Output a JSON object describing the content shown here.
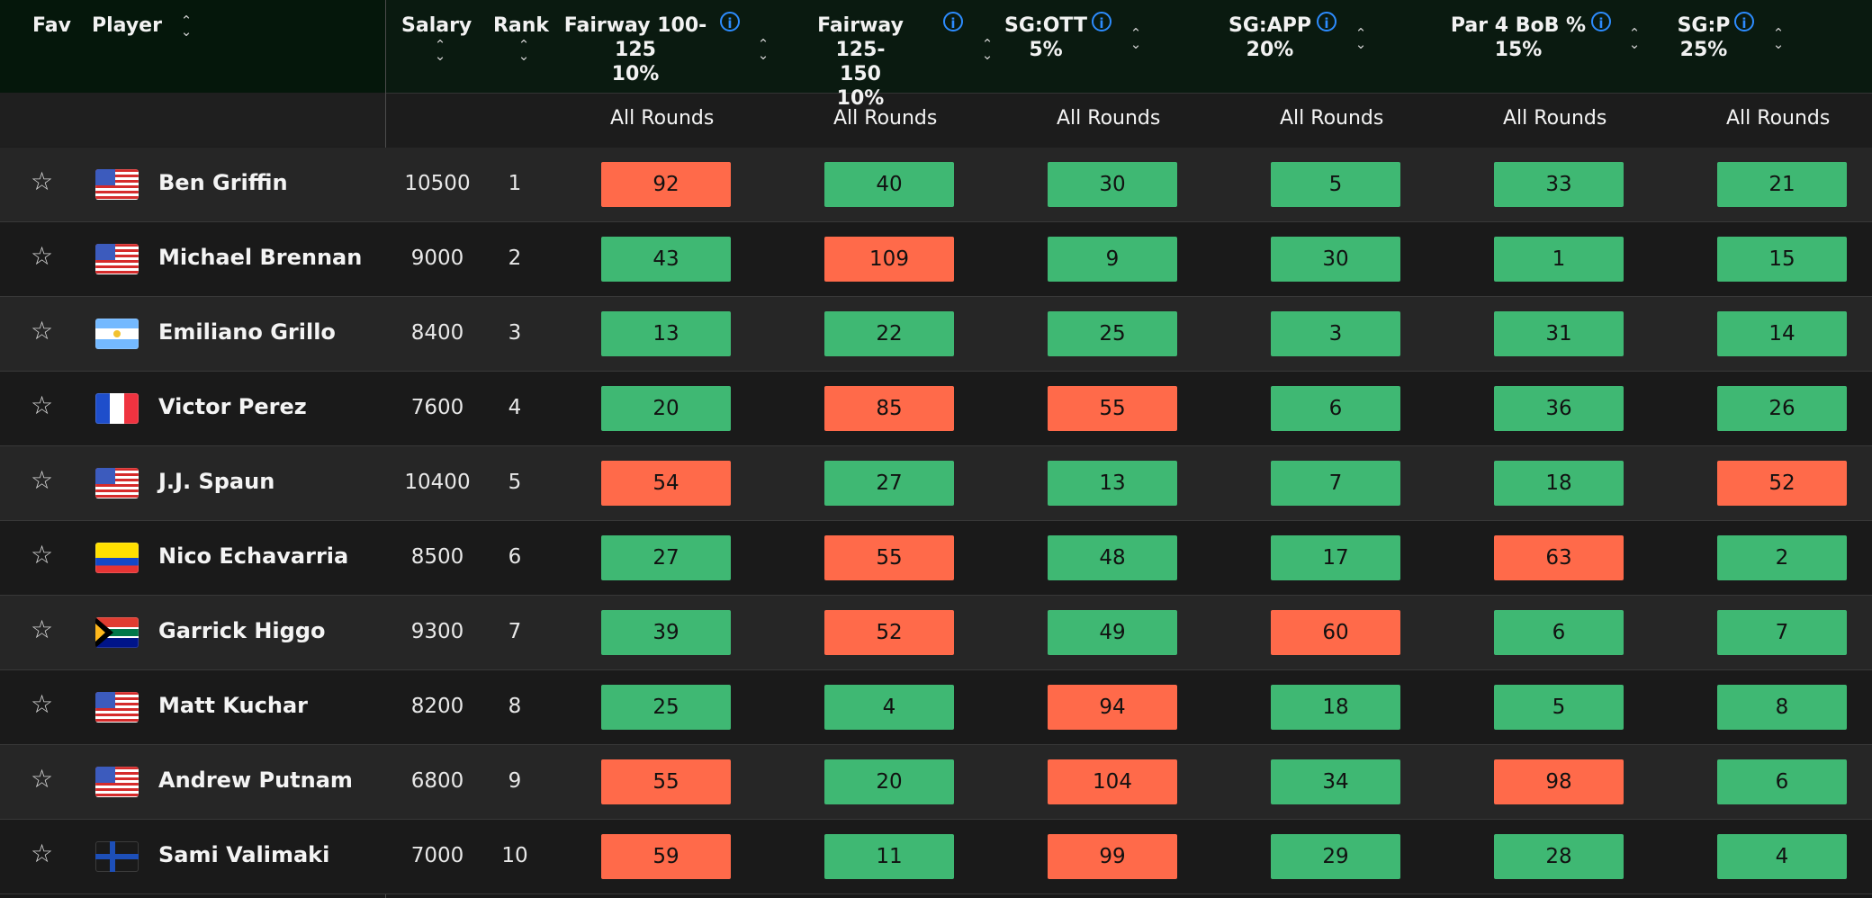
{
  "headers": {
    "fav": "Fav",
    "player": "Player",
    "salary": "Salary",
    "rank": "Rank",
    "fairway100_line1": "Fairway 100-",
    "fairway100_line2": "125",
    "fairway100_weight": "10%",
    "fairway125_line1": "Fairway 125-",
    "fairway125_line2": "150",
    "fairway125_weight": "10%",
    "sgott": "SG:OTT",
    "sgott_weight": "5%",
    "sgapp": "SG:APP",
    "sgapp_weight": "20%",
    "par4": "Par 4 BoB %",
    "par4_weight": "15%",
    "sgp": "SG:P",
    "sgp_weight": "25%"
  },
  "round_label": "All Rounds",
  "colors": {
    "good": "#3fb873",
    "bad": "#ff6a4a",
    "info": "#2d8cff"
  },
  "rows": [
    {
      "name": "Ben Griffin",
      "flag": "us",
      "salary": "10500",
      "rank": "1",
      "scores": [
        "92",
        "40",
        "30",
        "5",
        "33",
        "21"
      ],
      "states": [
        "bad",
        "good",
        "good",
        "good",
        "good",
        "good"
      ]
    },
    {
      "name": "Michael Brennan",
      "flag": "us",
      "salary": "9000",
      "rank": "2",
      "scores": [
        "43",
        "109",
        "9",
        "30",
        "1",
        "15"
      ],
      "states": [
        "good",
        "bad",
        "good",
        "good",
        "good",
        "good"
      ]
    },
    {
      "name": "Emiliano Grillo",
      "flag": "ar",
      "salary": "8400",
      "rank": "3",
      "scores": [
        "13",
        "22",
        "25",
        "3",
        "31",
        "14"
      ],
      "states": [
        "good",
        "good",
        "good",
        "good",
        "good",
        "good"
      ]
    },
    {
      "name": "Victor Perez",
      "flag": "fr",
      "salary": "7600",
      "rank": "4",
      "scores": [
        "20",
        "85",
        "55",
        "6",
        "36",
        "26"
      ],
      "states": [
        "good",
        "bad",
        "bad",
        "good",
        "good",
        "good"
      ]
    },
    {
      "name": "J.J. Spaun",
      "flag": "us",
      "salary": "10400",
      "rank": "5",
      "scores": [
        "54",
        "27",
        "13",
        "7",
        "18",
        "52"
      ],
      "states": [
        "bad",
        "good",
        "good",
        "good",
        "good",
        "bad"
      ]
    },
    {
      "name": "Nico Echavarria",
      "flag": "co",
      "salary": "8500",
      "rank": "6",
      "scores": [
        "27",
        "55",
        "48",
        "17",
        "63",
        "2"
      ],
      "states": [
        "good",
        "bad",
        "good",
        "good",
        "bad",
        "good"
      ]
    },
    {
      "name": "Garrick Higgo",
      "flag": "za",
      "salary": "9300",
      "rank": "7",
      "scores": [
        "39",
        "52",
        "49",
        "60",
        "6",
        "7"
      ],
      "states": [
        "good",
        "bad",
        "good",
        "bad",
        "good",
        "good"
      ]
    },
    {
      "name": "Matt Kuchar",
      "flag": "us",
      "salary": "8200",
      "rank": "8",
      "scores": [
        "25",
        "4",
        "94",
        "18",
        "5",
        "8"
      ],
      "states": [
        "good",
        "good",
        "bad",
        "good",
        "good",
        "good"
      ]
    },
    {
      "name": "Andrew Putnam",
      "flag": "us",
      "salary": "6800",
      "rank": "9",
      "scores": [
        "55",
        "20",
        "104",
        "34",
        "98",
        "6"
      ],
      "states": [
        "bad",
        "good",
        "bad",
        "good",
        "bad",
        "good"
      ]
    },
    {
      "name": "Sami Valimaki",
      "flag": "fi",
      "salary": "7000",
      "rank": "10",
      "scores": [
        "59",
        "11",
        "99",
        "29",
        "28",
        "4"
      ],
      "states": [
        "bad",
        "good",
        "bad",
        "good",
        "good",
        "good"
      ]
    }
  ]
}
